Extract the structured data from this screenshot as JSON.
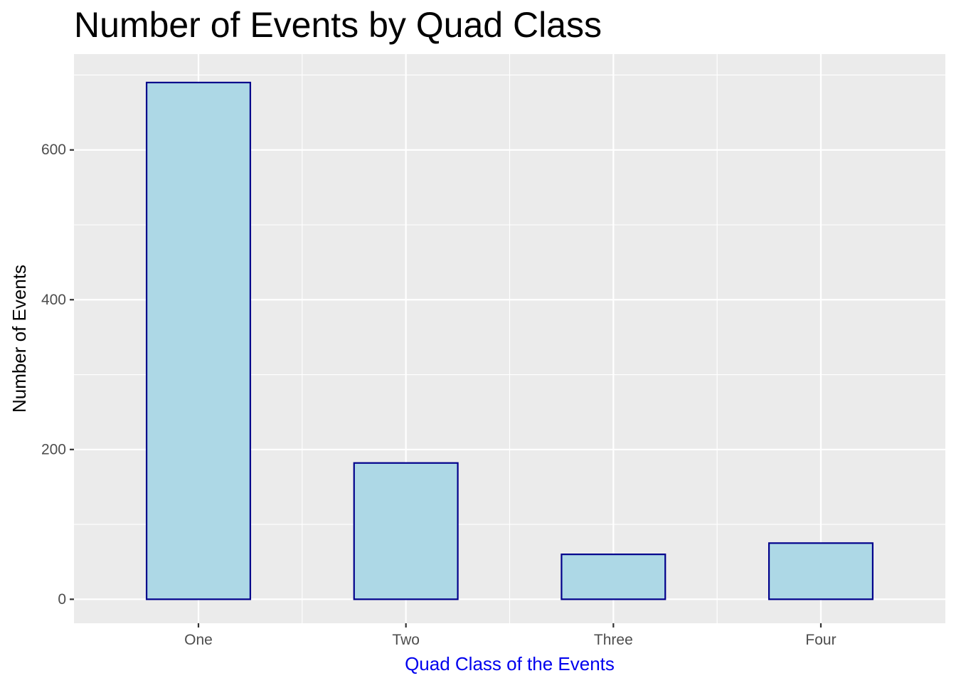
{
  "chart_data": {
    "type": "bar",
    "title": "Number of Events by Quad Class",
    "xlabel": "Quad Class of the Events",
    "ylabel": "Number of Events",
    "categories": [
      "One",
      "Two",
      "Three",
      "Four"
    ],
    "values": [
      690,
      182,
      60,
      75
    ],
    "ylim": [
      -32,
      728
    ],
    "yticks": [
      0,
      200,
      400,
      600
    ],
    "yticks_minor": [
      100,
      300,
      500,
      700
    ],
    "grid": true,
    "colors": {
      "panel": "#ebebeb",
      "grid": "#ffffff",
      "bar_fill": "#add8e6",
      "bar_outline": "#00008b",
      "xlabel": "#0000ee",
      "tick_label": "#4d4d4d",
      "tick": "#333333"
    }
  }
}
